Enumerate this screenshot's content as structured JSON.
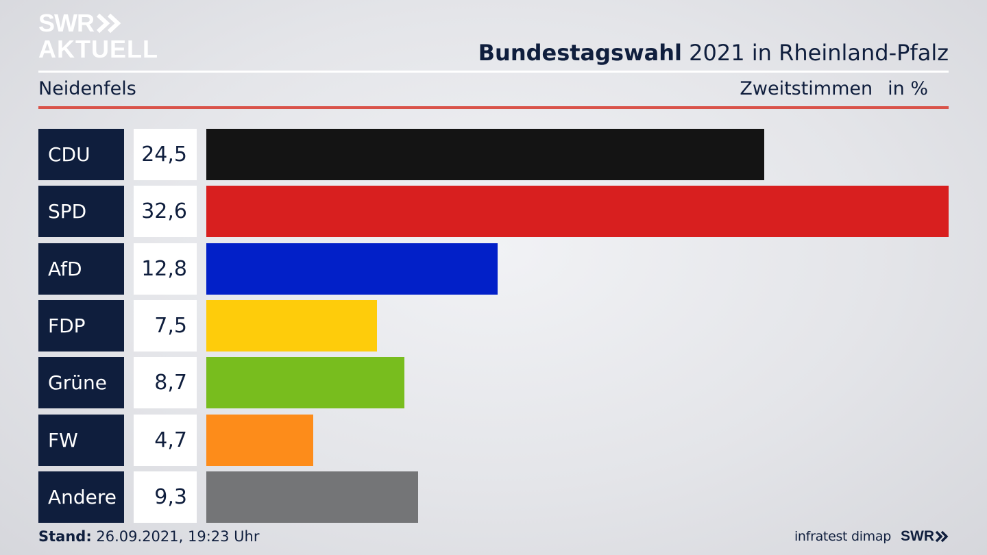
{
  "logo": {
    "line1": "SWR",
    "line2": "AKTUELL"
  },
  "header": {
    "title_bold": "Bundestagswahl",
    "title_rest": " 2021 in Rheinland-Pfalz",
    "subtitle": "Neidenfels",
    "vote_type": "Zweitstimmen",
    "unit": "in %"
  },
  "chart_data": {
    "type": "bar",
    "orientation": "horizontal",
    "categories": [
      "CDU",
      "SPD",
      "AfD",
      "FDP",
      "Grüne",
      "FW",
      "Andere"
    ],
    "values": [
      24.5,
      32.6,
      12.8,
      7.5,
      8.7,
      4.7,
      9.3
    ],
    "value_labels": [
      "24,5",
      "32,6",
      "12,8",
      "7,5",
      "8,7",
      "4,7",
      "9,3"
    ],
    "colors": [
      "#141414",
      "#d81f1f",
      "#0220c8",
      "#fecc0b",
      "#78bd1e",
      "#fd8c1a",
      "#747577"
    ],
    "xlim": [
      0,
      32.6
    ]
  },
  "footer": {
    "stand_label": "Stand:",
    "stand_value": " 26.09.2021, 19:23 Uhr",
    "source": "infratest dimap",
    "brand": "SWR"
  }
}
